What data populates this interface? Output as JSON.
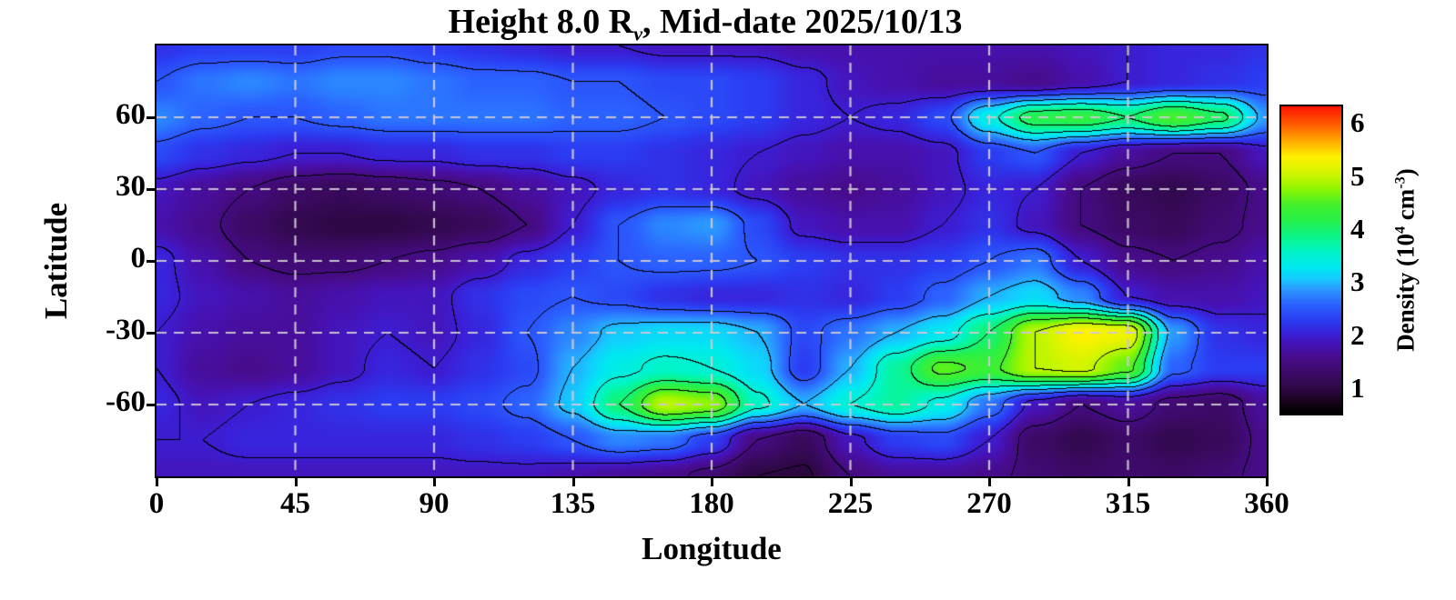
{
  "title": {
    "prefix": "Height 8.0 R",
    "subscript": "v",
    "suffix": ", Mid-date 2025/10/13"
  },
  "chart_data": {
    "type": "heatmap",
    "xlabel": "Longitude",
    "ylabel": "Latitude",
    "xlim": [
      0,
      360
    ],
    "ylim": [
      -90,
      90
    ],
    "x_ticks": [
      0,
      45,
      90,
      135,
      180,
      225,
      270,
      315,
      360
    ],
    "y_ticks": [
      60,
      30,
      0,
      -30,
      -60
    ],
    "grid": {
      "lon_lines": [
        45,
        90,
        135,
        180,
        225,
        270,
        315
      ],
      "lat_lines": [
        60,
        30,
        0,
        -30,
        -60
      ],
      "style": "dashed",
      "color": "#cdc8d2"
    },
    "lon_values": [
      0,
      15,
      30,
      45,
      60,
      75,
      90,
      105,
      120,
      135,
      150,
      165,
      180,
      195,
      210,
      225,
      240,
      255,
      270,
      285,
      300,
      315,
      330,
      345,
      360
    ],
    "lat_values": [
      90,
      75,
      60,
      45,
      30,
      15,
      0,
      -15,
      -30,
      -45,
      -60,
      -75,
      -90
    ],
    "density_grid": [
      [
        2.2,
        2.3,
        2.3,
        2.3,
        2.4,
        2.4,
        2.3,
        2.2,
        2.1,
        2.0,
        2.0,
        1.9,
        1.9,
        1.9,
        1.8,
        1.8,
        1.8,
        1.8,
        1.8,
        1.8,
        1.9,
        2.0,
        2.1,
        2.1,
        2.2
      ],
      [
        2.5,
        2.7,
        2.8,
        2.7,
        2.8,
        2.8,
        2.7,
        2.6,
        2.6,
        2.5,
        2.5,
        2.4,
        2.4,
        2.3,
        2.1,
        1.9,
        1.8,
        1.7,
        1.7,
        1.6,
        1.8,
        2.0,
        2.1,
        2.2,
        2.3
      ],
      [
        2.8,
        2.6,
        2.5,
        2.5,
        2.6,
        2.7,
        2.7,
        2.7,
        2.7,
        2.6,
        2.6,
        2.5,
        2.4,
        2.3,
        2.1,
        2.0,
        2.1,
        2.4,
        3.4,
        4.2,
        4.3,
        4.0,
        4.5,
        4.1,
        2.9
      ],
      [
        2.4,
        2.2,
        2.1,
        2.0,
        2.0,
        2.1,
        2.1,
        2.2,
        2.2,
        2.3,
        2.3,
        2.2,
        2.1,
        2.0,
        1.9,
        1.8,
        1.8,
        1.9,
        2.3,
        2.5,
        2.0,
        1.7,
        1.5,
        1.5,
        1.9
      ],
      [
        1.9,
        1.7,
        1.5,
        1.3,
        1.2,
        1.3,
        1.4,
        1.5,
        1.7,
        1.9,
        2.1,
        2.2,
        2.1,
        1.9,
        1.7,
        1.6,
        1.7,
        1.9,
        2.1,
        2.0,
        1.5,
        1.2,
        1.1,
        1.3,
        1.6
      ],
      [
        1.8,
        1.6,
        1.3,
        1.1,
        1.0,
        1.0,
        1.1,
        1.2,
        1.5,
        2.0,
        2.5,
        2.8,
        2.9,
        2.4,
        1.9,
        1.8,
        1.8,
        2.0,
        2.2,
        1.9,
        1.5,
        1.3,
        1.2,
        1.4,
        1.6
      ],
      [
        2.1,
        1.8,
        1.5,
        1.4,
        1.4,
        1.5,
        1.6,
        1.8,
        2.1,
        2.3,
        2.5,
        2.6,
        2.6,
        2.5,
        2.3,
        2.2,
        2.2,
        2.3,
        2.5,
        2.7,
        2.0,
        1.6,
        1.5,
        1.6,
        1.8
      ],
      [
        2.1,
        1.9,
        1.8,
        1.7,
        1.8,
        1.9,
        1.9,
        2.2,
        2.4,
        2.5,
        2.4,
        2.2,
        2.1,
        2.1,
        2.2,
        2.1,
        2.3,
        2.6,
        3.0,
        3.2,
        2.8,
        2.0,
        1.8,
        1.8,
        1.9
      ],
      [
        2.0,
        1.8,
        1.7,
        1.7,
        1.9,
        2.0,
        1.9,
        2.1,
        2.5,
        2.8,
        3.1,
        3.2,
        3.2,
        3.0,
        2.4,
        2.7,
        3.0,
        3.3,
        4.0,
        5.0,
        5.4,
        5.3,
        2.9,
        2.2,
        2.1
      ],
      [
        2.0,
        1.7,
        1.6,
        1.7,
        1.9,
        2.1,
        2.0,
        2.2,
        2.4,
        3.0,
        3.4,
        3.6,
        3.5,
        3.2,
        2.3,
        3.0,
        3.8,
        4.6,
        4.4,
        5.0,
        5.1,
        4.6,
        2.6,
        2.3,
        2.3
      ],
      [
        2.1,
        1.9,
        2.0,
        2.1,
        2.2,
        2.3,
        2.3,
        2.4,
        2.6,
        3.1,
        4.0,
        5.0,
        4.8,
        3.6,
        3.0,
        3.5,
        3.8,
        3.4,
        2.7,
        1.9,
        1.5,
        1.7,
        1.4,
        1.3,
        1.7
      ],
      [
        2.0,
        2.0,
        2.1,
        2.1,
        2.1,
        2.1,
        2.1,
        2.2,
        2.3,
        2.5,
        2.8,
        2.7,
        2.3,
        1.5,
        1.2,
        1.9,
        2.3,
        2.4,
        2.0,
        1.3,
        1.1,
        1.3,
        1.1,
        1.2,
        1.6
      ],
      [
        1.9,
        1.9,
        1.9,
        1.9,
        1.9,
        1.9,
        1.9,
        1.9,
        1.9,
        1.8,
        1.7,
        1.6,
        1.4,
        1.0,
        0.95,
        1.5,
        1.7,
        1.7,
        1.6,
        1.4,
        1.3,
        1.35,
        1.3,
        1.4,
        1.6
      ]
    ],
    "contour_levels": [
      1.0,
      1.5,
      2.0,
      2.5,
      3.0,
      3.5,
      4.0,
      4.5,
      5.0
    ],
    "contour_color": "#000000",
    "colormap_stops": [
      [
        0.55,
        "#000000"
      ],
      [
        0.8,
        "#1c0420"
      ],
      [
        1.0,
        "#2e0845"
      ],
      [
        1.3,
        "#3c0a66"
      ],
      [
        1.6,
        "#470c8c"
      ],
      [
        1.85,
        "#4612b4"
      ],
      [
        2.05,
        "#3a20d8"
      ],
      [
        2.3,
        "#2b3cf2"
      ],
      [
        2.6,
        "#2b62ff"
      ],
      [
        2.9,
        "#2b9aff"
      ],
      [
        3.1,
        "#14ccff"
      ],
      [
        3.3,
        "#00e8f2"
      ],
      [
        3.6,
        "#00f5c8"
      ],
      [
        3.9,
        "#0cf588"
      ],
      [
        4.2,
        "#28f04c"
      ],
      [
        4.5,
        "#44f02c"
      ],
      [
        4.8,
        "#90f500"
      ],
      [
        5.1,
        "#d4f500"
      ],
      [
        5.4,
        "#fff200"
      ],
      [
        5.7,
        "#ffaa00"
      ],
      [
        6.0,
        "#ff6000"
      ],
      [
        6.35,
        "#ff1400"
      ]
    ],
    "colorbar": {
      "range": [
        0.55,
        6.35
      ],
      "ticks": [
        6,
        5,
        4,
        3,
        2,
        1
      ],
      "label": {
        "prefix": "Density (10",
        "exp1": "4",
        "mid": " cm",
        "exp2": "-3",
        "suffix": ")"
      }
    }
  }
}
